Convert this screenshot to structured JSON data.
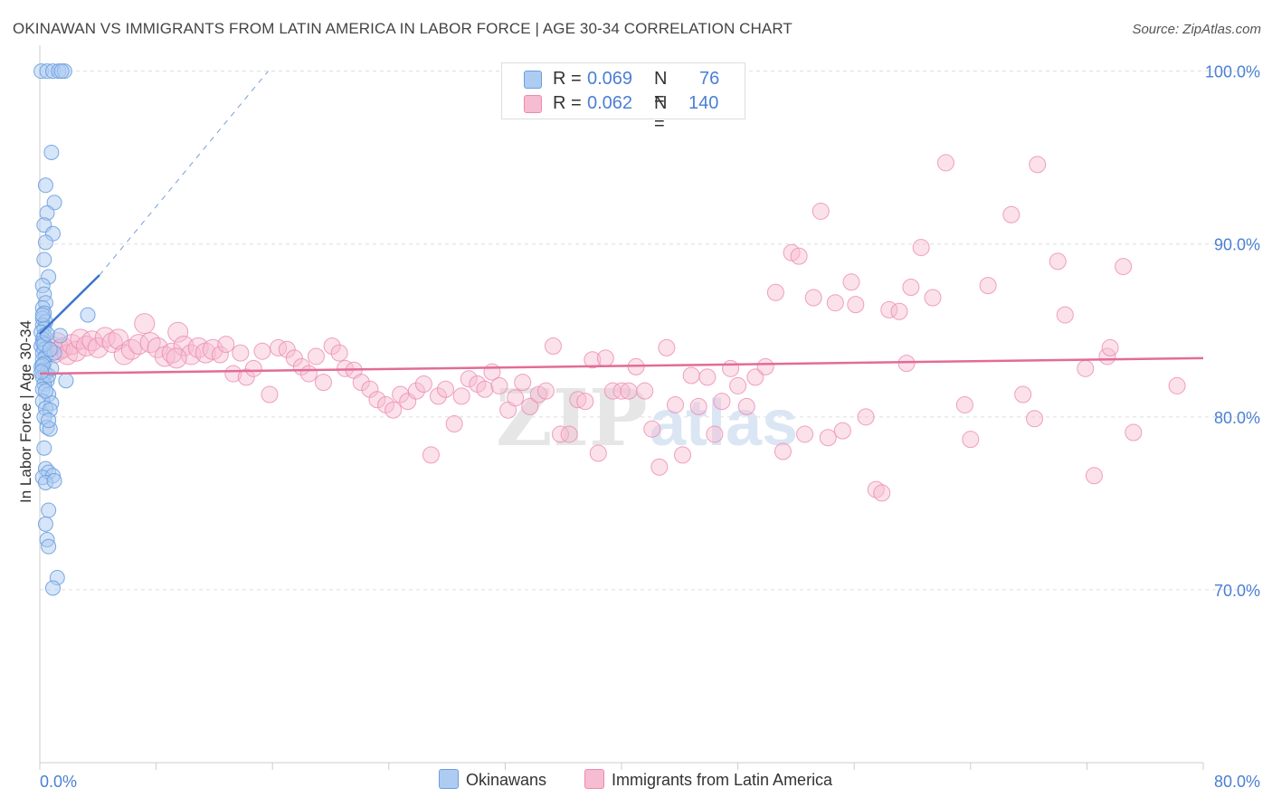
{
  "title": "OKINAWAN VS IMMIGRANTS FROM LATIN AMERICA IN LABOR FORCE | AGE 30-34 CORRELATION CHART",
  "source": "Source: ZipAtlas.com",
  "watermark": {
    "zip": "ZIP",
    "atlas": "atlas"
  },
  "colors": {
    "blue": "#6a9fe0",
    "blue_fill": "#aecbf2",
    "blue_line": "#3a75cc",
    "pink": "#ec8ab0",
    "pink_fill": "#f6bcd1",
    "pink_line": "#e26c97",
    "axis_text": "#4a7fd4",
    "grid": "#dddddd"
  },
  "stats": [
    {
      "r_label": "R =",
      "r_value": "0.069",
      "n_label": "N =",
      "n_value": "76",
      "color": "#aecbf2",
      "border": "#6a9fe0"
    },
    {
      "r_label": "R =",
      "r_value": "0.062",
      "n_label": "N =",
      "n_value": "140",
      "color": "#f6bcd1",
      "border": "#ec8ab0"
    }
  ],
  "legend": [
    {
      "label": "Okinawans",
      "color": "#aecbf2",
      "border": "#6a9fe0"
    },
    {
      "label": "Immigrants from Latin America",
      "color": "#f6bcd1",
      "border": "#ec8ab0"
    }
  ],
  "chart_data": {
    "type": "scatter",
    "title": "OKINAWAN VS IMMIGRANTS FROM LATIN AMERICA IN LABOR FORCE | AGE 30-34 CORRELATION CHART",
    "xlabel": "",
    "ylabel": "In Labor Force | Age 30-34",
    "xlim": [
      0,
      80
    ],
    "ylim": [
      60,
      101.5
    ],
    "x_tick_labels": [
      "0.0%",
      "80.0%"
    ],
    "y_ticks": [
      70,
      80,
      90,
      100
    ],
    "y_tick_labels": [
      "70.0%",
      "80.0%",
      "90.0%",
      "100.0%"
    ],
    "grid": true,
    "series": [
      {
        "name": "Okinawans",
        "points": [
          [
            0.1,
            100
          ],
          [
            0.5,
            100
          ],
          [
            0.9,
            100
          ],
          [
            1.3,
            100
          ],
          [
            1.7,
            100
          ],
          [
            1.5,
            100
          ],
          [
            0.8,
            95.3
          ],
          [
            0.4,
            93.4
          ],
          [
            1.0,
            92.4
          ],
          [
            0.5,
            91.8
          ],
          [
            0.3,
            91.1
          ],
          [
            0.9,
            90.6
          ],
          [
            0.4,
            90.1
          ],
          [
            0.3,
            89.1
          ],
          [
            0.6,
            88.1
          ],
          [
            0.2,
            87.6
          ],
          [
            0.3,
            87.1
          ],
          [
            0.4,
            86.6
          ],
          [
            0.2,
            86.3
          ],
          [
            0.3,
            86.0
          ],
          [
            0.2,
            85.7
          ],
          [
            0.4,
            85.5
          ],
          [
            0.2,
            85.3
          ],
          [
            0.3,
            85.1
          ],
          [
            0.1,
            84.9
          ],
          [
            0.3,
            84.7
          ],
          [
            0.2,
            84.5
          ],
          [
            0.2,
            84.3
          ],
          [
            0.1,
            84.1
          ],
          [
            0.3,
            83.9
          ],
          [
            0.2,
            83.7
          ],
          [
            0.4,
            83.5
          ],
          [
            0.2,
            83.3
          ],
          [
            0.3,
            83.1
          ],
          [
            0.1,
            82.9
          ],
          [
            0.2,
            82.7
          ],
          [
            0.4,
            82.5
          ],
          [
            0.2,
            82.3
          ],
          [
            0.5,
            82.1
          ],
          [
            0.3,
            81.9
          ],
          [
            0.2,
            81.6
          ],
          [
            0.6,
            81.3
          ],
          [
            0.2,
            80.9
          ],
          [
            0.8,
            80.8
          ],
          [
            0.4,
            80.5
          ],
          [
            0.7,
            80.4
          ],
          [
            0.3,
            80.0
          ],
          [
            0.5,
            79.4
          ],
          [
            0.7,
            79.3
          ],
          [
            0.3,
            78.2
          ],
          [
            0.4,
            77.0
          ],
          [
            0.6,
            76.8
          ],
          [
            0.2,
            76.5
          ],
          [
            0.9,
            76.6
          ],
          [
            0.4,
            76.2
          ],
          [
            1.0,
            76.3
          ],
          [
            0.6,
            74.6
          ],
          [
            0.4,
            73.8
          ],
          [
            0.5,
            72.9
          ],
          [
            0.6,
            72.5
          ],
          [
            1.2,
            70.7
          ],
          [
            0.9,
            70.1
          ],
          [
            3.3,
            85.9
          ],
          [
            1.4,
            84.7
          ],
          [
            1.8,
            82.1
          ],
          [
            1.0,
            83.7
          ],
          [
            0.6,
            82.4
          ],
          [
            0.8,
            82.8
          ],
          [
            0.2,
            83.0
          ],
          [
            0.3,
            84.2
          ],
          [
            0.5,
            84.8
          ],
          [
            0.7,
            83.9
          ],
          [
            0.1,
            82.6
          ],
          [
            0.2,
            85.9
          ],
          [
            0.4,
            81.5
          ],
          [
            0.6,
            79.8
          ]
        ]
      },
      {
        "name": "Immigrants from Latin America",
        "points": [
          [
            0.8,
            84.1
          ],
          [
            1.0,
            83.7
          ],
          [
            1.2,
            84.3
          ],
          [
            1.4,
            83.9
          ],
          [
            1.6,
            84.0
          ],
          [
            1.9,
            83.6
          ],
          [
            2.2,
            84.2
          ],
          [
            2.5,
            83.8
          ],
          [
            2.8,
            84.5
          ],
          [
            3.2,
            84.1
          ],
          [
            3.6,
            84.4
          ],
          [
            4.0,
            84.0
          ],
          [
            4.5,
            84.6
          ],
          [
            5.0,
            84.3
          ],
          [
            5.4,
            84.5
          ],
          [
            5.8,
            83.6
          ],
          [
            6.3,
            83.9
          ],
          [
            6.8,
            84.2
          ],
          [
            7.2,
            85.4
          ],
          [
            7.6,
            84.3
          ],
          [
            8.1,
            84.0
          ],
          [
            8.6,
            83.5
          ],
          [
            9.1,
            83.7
          ],
          [
            9.5,
            84.9
          ],
          [
            9.9,
            84.1
          ],
          [
            10.4,
            83.6
          ],
          [
            10.9,
            84.0
          ],
          [
            11.4,
            83.7
          ],
          [
            11.9,
            83.9
          ],
          [
            12.4,
            83.6
          ],
          [
            12.8,
            84.2
          ],
          [
            13.3,
            82.5
          ],
          [
            13.8,
            83.7
          ],
          [
            14.2,
            82.3
          ],
          [
            14.7,
            82.8
          ],
          [
            15.3,
            83.8
          ],
          [
            15.8,
            81.3
          ],
          [
            16.4,
            84.0
          ],
          [
            17.0,
            83.9
          ],
          [
            17.5,
            83.4
          ],
          [
            18.0,
            82.9
          ],
          [
            18.5,
            82.5
          ],
          [
            19.0,
            83.5
          ],
          [
            19.5,
            82.0
          ],
          [
            20.1,
            84.1
          ],
          [
            20.6,
            83.7
          ],
          [
            21.0,
            82.8
          ],
          [
            21.6,
            82.7
          ],
          [
            22.1,
            82.0
          ],
          [
            22.7,
            81.6
          ],
          [
            23.2,
            81.0
          ],
          [
            23.8,
            80.7
          ],
          [
            24.3,
            80.4
          ],
          [
            24.8,
            81.3
          ],
          [
            25.3,
            80.9
          ],
          [
            25.9,
            81.5
          ],
          [
            26.4,
            81.9
          ],
          [
            26.9,
            77.8
          ],
          [
            27.4,
            81.2
          ],
          [
            27.9,
            81.6
          ],
          [
            28.5,
            79.6
          ],
          [
            29.0,
            81.2
          ],
          [
            29.5,
            82.2
          ],
          [
            30.1,
            81.9
          ],
          [
            30.6,
            81.6
          ],
          [
            31.1,
            82.6
          ],
          [
            31.6,
            81.8
          ],
          [
            32.2,
            80.4
          ],
          [
            32.7,
            81.1
          ],
          [
            33.2,
            82.0
          ],
          [
            33.7,
            80.6
          ],
          [
            34.3,
            81.3
          ],
          [
            34.8,
            81.5
          ],
          [
            35.3,
            84.1
          ],
          [
            35.8,
            79.0
          ],
          [
            36.4,
            79.0
          ],
          [
            37.0,
            81.0
          ],
          [
            37.5,
            80.9
          ],
          [
            38.0,
            83.3
          ],
          [
            38.4,
            77.9
          ],
          [
            38.9,
            83.4
          ],
          [
            39.4,
            81.5
          ],
          [
            40.0,
            81.5
          ],
          [
            40.5,
            81.5
          ],
          [
            41.0,
            82.9
          ],
          [
            41.6,
            81.5
          ],
          [
            42.1,
            79.3
          ],
          [
            42.6,
            77.1
          ],
          [
            43.1,
            84.0
          ],
          [
            43.7,
            80.7
          ],
          [
            44.2,
            77.8
          ],
          [
            44.8,
            82.4
          ],
          [
            45.3,
            80.6
          ],
          [
            45.9,
            82.3
          ],
          [
            46.4,
            79.0
          ],
          [
            46.9,
            80.9
          ],
          [
            47.5,
            82.8
          ],
          [
            48.0,
            81.8
          ],
          [
            48.6,
            80.6
          ],
          [
            49.2,
            82.3
          ],
          [
            49.9,
            82.9
          ],
          [
            50.6,
            87.2
          ],
          [
            51.1,
            78.0
          ],
          [
            51.7,
            89.5
          ],
          [
            52.2,
            89.3
          ],
          [
            52.6,
            79.0
          ],
          [
            53.2,
            86.9
          ],
          [
            53.7,
            91.9
          ],
          [
            54.2,
            78.8
          ],
          [
            54.7,
            86.6
          ],
          [
            55.2,
            79.2
          ],
          [
            55.8,
            87.8
          ],
          [
            56.1,
            86.5
          ],
          [
            56.8,
            80.0
          ],
          [
            57.5,
            75.8
          ],
          [
            57.9,
            75.6
          ],
          [
            58.4,
            86.2
          ],
          [
            59.1,
            86.1
          ],
          [
            59.6,
            83.1
          ],
          [
            59.9,
            87.5
          ],
          [
            60.6,
            89.8
          ],
          [
            61.4,
            86.9
          ],
          [
            62.3,
            94.7
          ],
          [
            63.6,
            80.7
          ],
          [
            64.0,
            78.7
          ],
          [
            65.2,
            87.6
          ],
          [
            66.8,
            91.7
          ],
          [
            67.6,
            81.3
          ],
          [
            68.4,
            79.9
          ],
          [
            68.6,
            94.6
          ],
          [
            70.0,
            89.0
          ],
          [
            70.5,
            85.9
          ],
          [
            71.9,
            82.8
          ],
          [
            72.5,
            76.6
          ],
          [
            73.4,
            83.5
          ],
          [
            73.6,
            84.0
          ],
          [
            74.5,
            88.7
          ],
          [
            75.2,
            79.1
          ],
          [
            78.2,
            81.8
          ],
          [
            9.4,
            83.4
          ]
        ]
      }
    ],
    "trend_lines": [
      {
        "series": "Okinawans",
        "solid": [
          [
            0,
            84.8
          ],
          [
            4.1,
            88.2
          ]
        ],
        "dashed_to": [
          15.7,
          100
        ]
      },
      {
        "series": "Immigrants from Latin America",
        "solid": [
          [
            0,
            82.5
          ],
          [
            80,
            83.4
          ]
        ]
      }
    ]
  }
}
